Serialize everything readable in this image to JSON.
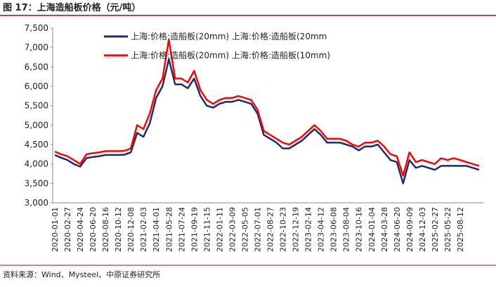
{
  "chart_data": {
    "type": "line",
    "title": "图 17：上海造船板价格（元/吨）",
    "source": "资料来源：Wind、Mysteel、中原证券研究所",
    "categories": [
      "2020-01-01",
      null,
      "2020-02-27",
      null,
      "2020-04-24",
      null,
      "2020-06-20",
      null,
      "2020-08-16",
      null,
      "2020-10-12",
      null,
      "2020-12-08",
      null,
      "2021-02-03",
      null,
      "2021-04-01",
      null,
      "2021-05-28",
      null,
      "2021-07-24",
      null,
      "2021-09-19",
      null,
      "2021-11-15",
      null,
      "2022-01-11",
      null,
      "2022-03-09",
      null,
      "2022-05-05",
      null,
      "2022-07-01",
      null,
      "2022-08-27",
      null,
      "2022-10-23",
      null,
      "2022-12-19",
      null,
      "2023-02-14",
      null,
      "2023-04-12",
      null,
      "2023-06-08",
      null,
      "2023-08-04",
      null,
      "2023-10-16",
      null,
      "2024-01-04",
      null,
      "2024-03-28",
      null,
      "2024-06-20",
      null,
      "2024-09-09",
      null,
      "2024-12-03",
      null,
      "2025-02-27",
      null,
      "2025-05-22",
      null,
      "2025-08-12",
      null,
      null,
      null
    ],
    "series": [
      {
        "name": "上海:价格:造船板(20mm) 上海:价格:造船板(20mm",
        "color": "#1f2a6b",
        "values": [
          4230,
          4160,
          4100,
          4000,
          3930,
          4150,
          4180,
          4200,
          4230,
          4230,
          4230,
          4240,
          4300,
          4800,
          4700,
          5050,
          5700,
          6000,
          6700,
          6050,
          6050,
          5950,
          6200,
          5750,
          5500,
          5450,
          5550,
          5600,
          5600,
          5650,
          5600,
          5550,
          5300,
          4750,
          4650,
          4550,
          4400,
          4400,
          4500,
          4600,
          4750,
          4900,
          4750,
          4550,
          4550,
          4550,
          4500,
          4450,
          4350,
          4450,
          4450,
          4500,
          4300,
          4100,
          4050,
          3500,
          4100,
          3900,
          3950,
          3900,
          3850,
          3950,
          3950,
          3950,
          3950,
          3950,
          3900,
          3850
        ]
      },
      {
        "name": "上海:价格:造船板(20mm) 上海:价格:造船板(10mm)",
        "color": "#ff0000",
        "values": [
          4320,
          4250,
          4200,
          4100,
          4000,
          4250,
          4280,
          4300,
          4330,
          4330,
          4330,
          4340,
          4400,
          5000,
          4900,
          5300,
          5900,
          6200,
          7200,
          6200,
          6200,
          6100,
          6400,
          5900,
          5650,
          5550,
          5650,
          5700,
          5700,
          5750,
          5700,
          5650,
          5400,
          4850,
          4750,
          4650,
          4550,
          4500,
          4600,
          4700,
          4850,
          5000,
          4850,
          4650,
          4650,
          4650,
          4600,
          4500,
          4450,
          4550,
          4550,
          4600,
          4450,
          4250,
          4200,
          3700,
          4300,
          4050,
          4100,
          4050,
          4000,
          4150,
          4100,
          4150,
          4100,
          4050,
          4000,
          3950
        ]
      }
    ],
    "ylim": [
      3000,
      7500
    ],
    "yticks": [
      {
        "value": 3000,
        "label": "3,000"
      },
      {
        "value": 3500,
        "label": "3,500"
      },
      {
        "value": 4000,
        "label": "4,000"
      },
      {
        "value": 4500,
        "label": "4,500"
      },
      {
        "value": 5000,
        "label": "5,000"
      },
      {
        "value": 5500,
        "label": "5,500"
      },
      {
        "value": 6000,
        "label": "6,000"
      },
      {
        "value": 6500,
        "label": "6,500"
      },
      {
        "value": 7000,
        "label": "7,000"
      },
      {
        "value": 7500,
        "label": "7,500"
      }
    ],
    "grid": false
  }
}
